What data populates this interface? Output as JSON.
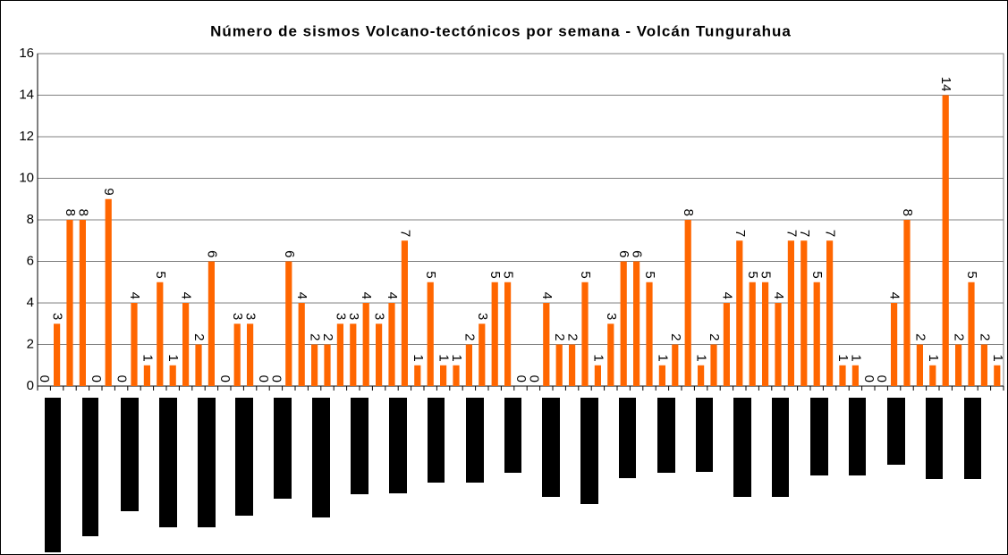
{
  "chart_data": {
    "type": "bar",
    "title": "Número de sismos Volcano-tectónicos por semana - Volcán Tungurahua",
    "values": [
      0,
      3,
      8,
      8,
      0,
      9,
      0,
      4,
      1,
      5,
      1,
      4,
      2,
      6,
      0,
      3,
      3,
      0,
      0,
      6,
      4,
      2,
      2,
      3,
      3,
      4,
      3,
      4,
      7,
      1,
      5,
      1,
      1,
      2,
      3,
      5,
      5,
      0,
      0,
      4,
      2,
      2,
      5,
      1,
      3,
      6,
      6,
      5,
      1,
      2,
      8,
      1,
      2,
      4,
      7,
      5,
      5,
      4,
      7,
      7,
      5,
      7,
      1,
      1,
      0,
      0,
      4,
      8,
      2,
      1,
      14,
      2,
      5,
      2,
      1
    ],
    "color": "#ff6600",
    "ylim": [
      0,
      16
    ],
    "yticks": [
      0,
      2,
      4,
      6,
      8,
      10,
      12,
      14,
      16
    ],
    "grid": true
  }
}
